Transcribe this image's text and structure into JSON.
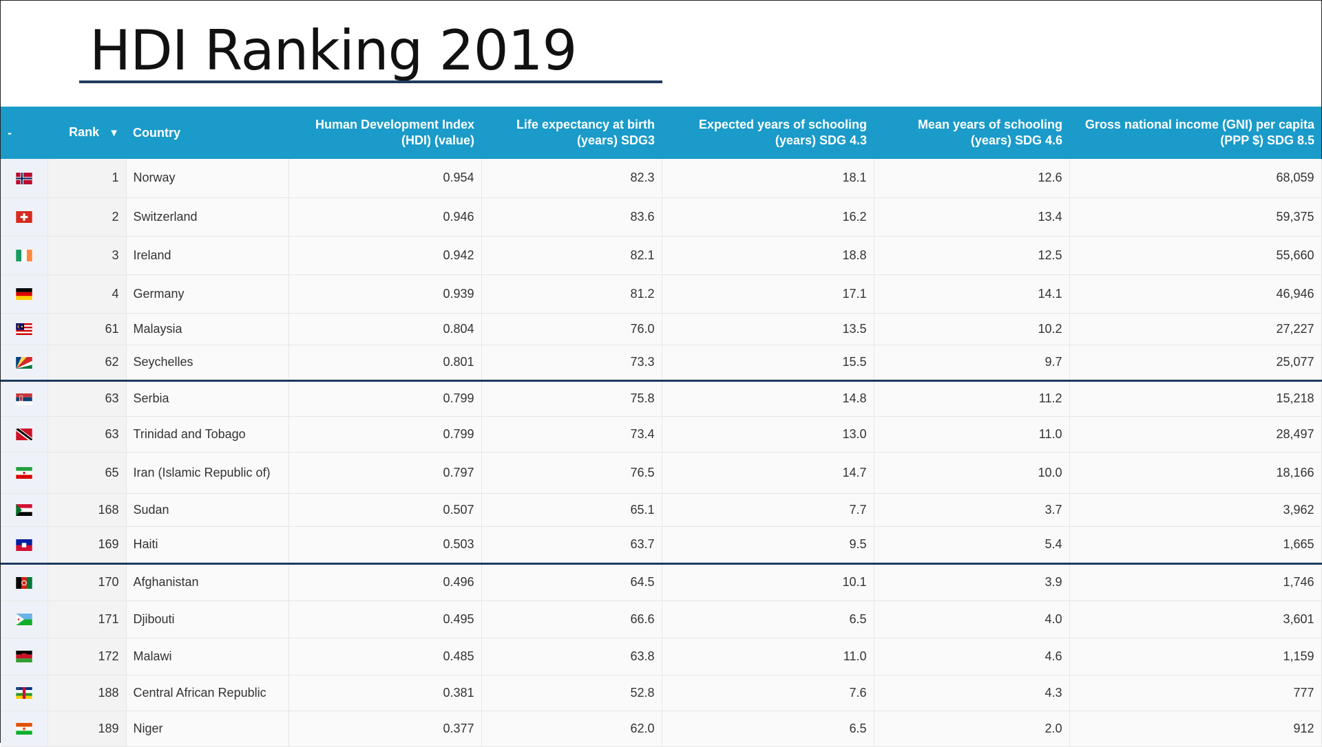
{
  "title": "HDI Ranking 2019",
  "headers": {
    "flag": "-",
    "rank": "Rank",
    "country": "Country",
    "hdi": [
      "Human Development Index",
      "(HDI) (value)"
    ],
    "life": [
      "Life expectancy at birth",
      "(years) SDG3"
    ],
    "expected": [
      "Expected years of schooling",
      "(years) SDG 4.3"
    ],
    "mean": [
      "Mean years of schooling",
      "(years) SDG 4.6"
    ],
    "gni": [
      "Gross national income (GNI) per capita",
      "(PPP $) SDG 8.5"
    ]
  },
  "sort_icon": "▼",
  "rows": [
    {
      "flag": "norway-flag-icon",
      "rank": "1",
      "country": "Norway",
      "hdi": "0.954",
      "life": "82.3",
      "expected": "18.1",
      "mean": "12.6",
      "gni": "68,059"
    },
    {
      "flag": "switzerland-flag-icon",
      "rank": "2",
      "country": "Switzerland",
      "hdi": "0.946",
      "life": "83.6",
      "expected": "16.2",
      "mean": "13.4",
      "gni": "59,375"
    },
    {
      "flag": "ireland-flag-icon",
      "rank": "3",
      "country": "Ireland",
      "hdi": "0.942",
      "life": "82.1",
      "expected": "18.8",
      "mean": "12.5",
      "gni": "55,660"
    },
    {
      "flag": "germany-flag-icon",
      "rank": "4",
      "country": "Germany",
      "hdi": "0.939",
      "life": "81.2",
      "expected": "17.1",
      "mean": "14.1",
      "gni": "46,946"
    },
    {
      "flag": "malaysia-flag-icon",
      "rank": "61",
      "country": "Malaysia",
      "hdi": "0.804",
      "life": "76.0",
      "expected": "13.5",
      "mean": "10.2",
      "gni": "27,227"
    },
    {
      "flag": "seychelles-flag-icon",
      "rank": "62",
      "country": "Seychelles",
      "hdi": "0.801",
      "life": "73.3",
      "expected": "15.5",
      "mean": "9.7",
      "gni": "25,077"
    },
    {
      "flag": "serbia-flag-icon",
      "rank": "63",
      "country": "Serbia",
      "hdi": "0.799",
      "life": "75.8",
      "expected": "14.8",
      "mean": "11.2",
      "gni": "15,218"
    },
    {
      "flag": "trinidad-and-tobago-flag-icon",
      "rank": "63",
      "country": "Trinidad and Tobago",
      "hdi": "0.799",
      "life": "73.4",
      "expected": "13.0",
      "mean": "11.0",
      "gni": "28,497"
    },
    {
      "flag": "iran-flag-icon",
      "rank": "65",
      "country": "Iran (Islamic Republic of)",
      "hdi": "0.797",
      "life": "76.5",
      "expected": "14.7",
      "mean": "10.0",
      "gni": "18,166"
    },
    {
      "flag": "sudan-flag-icon",
      "rank": "168",
      "country": "Sudan",
      "hdi": "0.507",
      "life": "65.1",
      "expected": "7.7",
      "mean": "3.7",
      "gni": "3,962"
    },
    {
      "flag": "haiti-flag-icon",
      "rank": "169",
      "country": "Haiti",
      "hdi": "0.503",
      "life": "63.7",
      "expected": "9.5",
      "mean": "5.4",
      "gni": "1,665"
    },
    {
      "flag": "afghanistan-flag-icon",
      "rank": "170",
      "country": "Afghanistan",
      "hdi": "0.496",
      "life": "64.5",
      "expected": "10.1",
      "mean": "3.9",
      "gni": "1,746"
    },
    {
      "flag": "djibouti-flag-icon",
      "rank": "171",
      "country": "Djibouti",
      "hdi": "0.495",
      "life": "66.6",
      "expected": "6.5",
      "mean": "4.0",
      "gni": "3,601"
    },
    {
      "flag": "malawi-flag-icon",
      "rank": "172",
      "country": "Malawi",
      "hdi": "0.485",
      "life": "63.8",
      "expected": "11.0",
      "mean": "4.6",
      "gni": "1,159"
    },
    {
      "flag": "central-african-republic-flag-icon",
      "rank": "188",
      "country": "Central African Republic",
      "hdi": "0.381",
      "life": "52.8",
      "expected": "7.6",
      "mean": "4.3",
      "gni": "777"
    },
    {
      "flag": "niger-flag-icon",
      "rank": "189",
      "country": "Niger",
      "hdi": "0.377",
      "life": "62.0",
      "expected": "6.5",
      "mean": "2.0",
      "gni": "912"
    }
  ]
}
